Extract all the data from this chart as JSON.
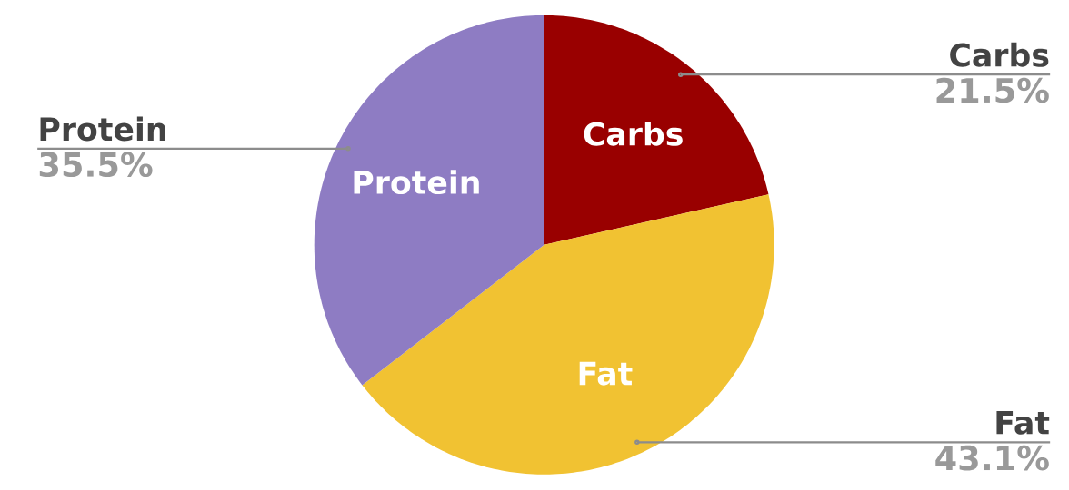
{
  "chart_data": {
    "type": "pie",
    "categories": [
      "Carbs",
      "Fat",
      "Protein"
    ],
    "values": [
      21.5,
      43.1,
      35.5
    ],
    "colors": [
      "#990000",
      "#f1c232",
      "#8e7cc3"
    ],
    "value_labels": [
      "21.5%",
      "43.1%",
      "35.5%"
    ]
  }
}
